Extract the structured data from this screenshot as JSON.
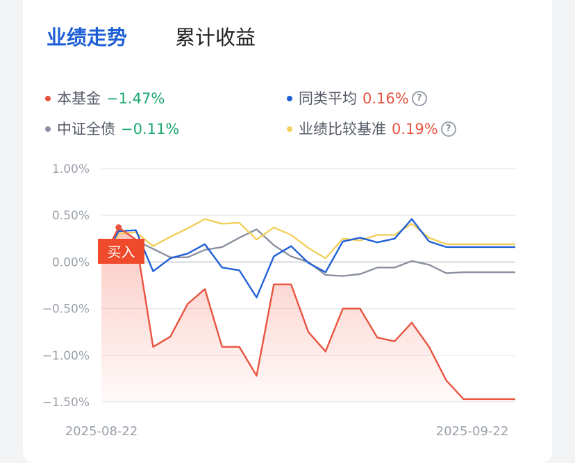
{
  "tabs": {
    "active": "业绩走势",
    "inactive": "累计收益"
  },
  "legend": [
    {
      "name": "本基金",
      "value": "−1.47%",
      "dot_color": "#e8533f",
      "value_color": "#1aa86e",
      "help": false
    },
    {
      "name": "同类平均",
      "value": "0.16%",
      "dot_color": "#1f5fd6",
      "value_color": "#e8533f",
      "help": true
    },
    {
      "name": "中证全债",
      "value": "−0.11%",
      "dot_color": "#8a909e",
      "value_color": "#1aa86e",
      "help": false
    },
    {
      "name": "业绩比较基准",
      "value": "0.19%",
      "dot_color": "#f2cf5b",
      "value_color": "#e8533f",
      "help": true
    }
  ],
  "help_glyph": "?",
  "buy_marker": {
    "label": "买入",
    "x": 2,
    "y": 0.37
  },
  "chart_data": {
    "type": "line",
    "x_start_label": "2025-08-22",
    "x_end_label": "2025-09-22",
    "x": [
      1,
      2,
      3,
      4,
      5,
      6,
      7,
      8,
      9,
      10,
      11,
      12,
      13,
      14,
      15,
      16,
      17,
      18,
      19,
      20,
      21,
      22,
      23,
      24,
      25
    ],
    "ylim": [
      -1.5,
      1.0
    ],
    "yticks": [
      1.0,
      0.5,
      0.0,
      -0.5,
      -1.0,
      -1.5
    ],
    "ytick_labels": [
      "1.00%",
      "0.50%",
      "0.00%",
      "−0.50%",
      "−1.00%",
      "−1.50%"
    ],
    "grid": true,
    "series": [
      {
        "name": "中证全债",
        "color": "#8a909e",
        "values": [
          0,
          0.22,
          0.23,
          0.14,
          0.05,
          0.05,
          0.13,
          0.16,
          0.26,
          0.35,
          0.18,
          0.06,
          0.0,
          -0.14,
          -0.15,
          -0.13,
          -0.06,
          -0.06,
          0.01,
          -0.03,
          -0.12,
          -0.11,
          -0.11,
          -0.11,
          -0.11
        ]
      },
      {
        "name": "业绩比较基准",
        "color": "#f2cf5b",
        "values": [
          0,
          0.3,
          0.32,
          0.17,
          0.27,
          0.36,
          0.46,
          0.41,
          0.42,
          0.24,
          0.37,
          0.29,
          0.15,
          0.04,
          0.25,
          0.23,
          0.29,
          0.29,
          0.41,
          0.26,
          0.19,
          0.19,
          0.19,
          0.19,
          0.19
        ]
      },
      {
        "name": "同类平均",
        "color": "#1f5fd6",
        "values": [
          0,
          0.33,
          0.34,
          -0.1,
          0.04,
          0.09,
          0.19,
          -0.06,
          -0.09,
          -0.38,
          0.06,
          0.17,
          -0.01,
          -0.11,
          0.22,
          0.26,
          0.21,
          0.25,
          0.46,
          0.22,
          0.16,
          0.16,
          0.16,
          0.16,
          0.16
        ]
      },
      {
        "name": "本基金",
        "color": "#e8533f",
        "values": [
          0,
          0.37,
          0.24,
          -0.91,
          -0.8,
          -0.45,
          -0.29,
          -0.91,
          -0.91,
          -1.22,
          -0.24,
          -0.24,
          -0.75,
          -0.96,
          -0.5,
          -0.5,
          -0.81,
          -0.85,
          -0.65,
          -0.91,
          -1.27,
          -1.47,
          -1.47,
          -1.47,
          -1.47
        ]
      }
    ]
  }
}
